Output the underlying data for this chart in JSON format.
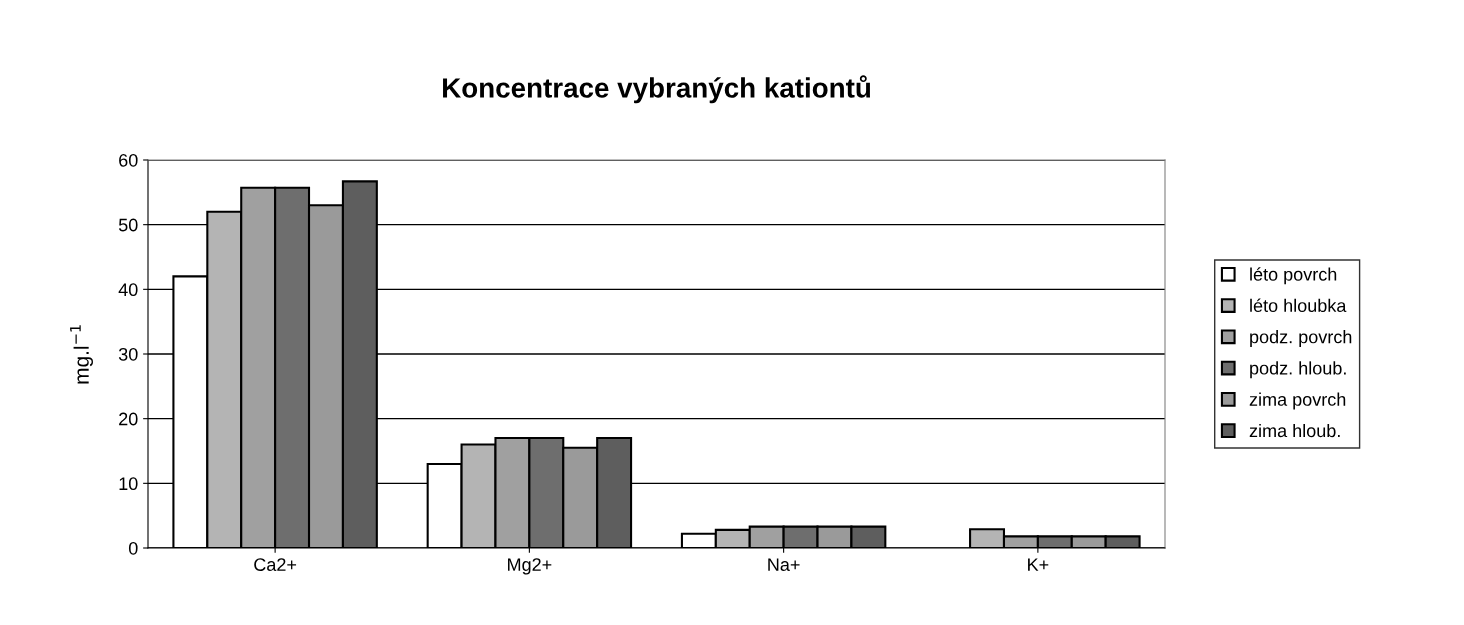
{
  "chart_data": {
    "type": "bar",
    "title": "Koncentrace vybraných kationtů",
    "ylabel": "mg.l$^{−1}$",
    "categories": [
      "Ca2+",
      "Mg2+",
      "Na+",
      "K+"
    ],
    "series": [
      {
        "name": "léto povrch",
        "color": "#ffffff",
        "values": [
          42,
          13,
          2.2,
          null
        ]
      },
      {
        "name": "léto hloubka",
        "color": "#b4b4b4",
        "values": [
          52,
          16,
          2.8,
          2.9
        ]
      },
      {
        "name": "podz. povrch",
        "color": "#a0a0a0",
        "values": [
          55.7,
          17,
          3.3,
          1.8
        ]
      },
      {
        "name": "podz. hloub.",
        "color": "#6e6e6e",
        "values": [
          55.7,
          17,
          3.3,
          1.8
        ]
      },
      {
        "name": "zima povrch",
        "color": "#9a9a9a",
        "values": [
          53,
          15.5,
          3.3,
          1.8
        ]
      },
      {
        "name": "zima hloub.",
        "color": "#5e5e5e",
        "values": [
          56.7,
          17,
          3.3,
          1.8
        ]
      }
    ],
    "ylim": [
      0,
      60
    ],
    "yticks": [
      0,
      10,
      20,
      30,
      40,
      50,
      60
    ],
    "grid": "y",
    "legend": "right"
  }
}
